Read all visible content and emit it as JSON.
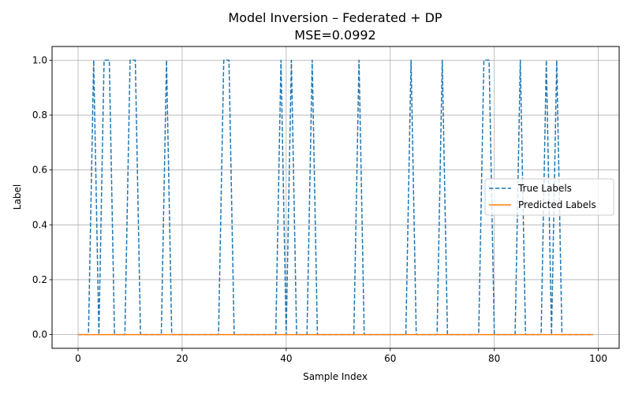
{
  "chart_data": {
    "type": "line",
    "title": "Model Inversion – Federated + DP",
    "subtitle": "MSE=0.0992",
    "xlabel": "Sample Index",
    "ylabel": "Label",
    "xlim": [
      -5,
      104
    ],
    "ylim": [
      -0.05,
      1.05
    ],
    "xticks": [
      0,
      20,
      40,
      60,
      80,
      100
    ],
    "yticks": [
      0.0,
      0.2,
      0.4,
      0.6,
      0.8,
      1.0
    ],
    "grid": true,
    "legend_position": "center-right",
    "series": [
      {
        "name": "True Labels",
        "style": "dashed",
        "color": "#1f77b4",
        "x": [
          0,
          1,
          2,
          3,
          4,
          5,
          6,
          7,
          8,
          9,
          10,
          11,
          12,
          13,
          14,
          15,
          16,
          17,
          18,
          19,
          20,
          21,
          22,
          23,
          24,
          25,
          26,
          27,
          28,
          29,
          30,
          31,
          32,
          33,
          34,
          35,
          36,
          37,
          38,
          39,
          40,
          41,
          42,
          43,
          44,
          45,
          46,
          47,
          48,
          49,
          50,
          51,
          52,
          53,
          54,
          55,
          56,
          57,
          58,
          59,
          60,
          61,
          62,
          63,
          64,
          65,
          66,
          67,
          68,
          69,
          70,
          71,
          72,
          73,
          74,
          75,
          76,
          77,
          78,
          79,
          80,
          81,
          82,
          83,
          84,
          85,
          86,
          87,
          88,
          89,
          90,
          91,
          92,
          93,
          94,
          95,
          96,
          97,
          98,
          99
        ],
        "values": [
          0,
          0,
          0,
          1,
          0,
          1,
          1,
          0,
          0,
          0,
          1,
          1,
          0,
          0,
          0,
          0,
          0,
          1,
          0,
          0,
          0,
          0,
          0,
          0,
          0,
          0,
          0,
          0,
          1,
          1,
          0,
          0,
          0,
          0,
          0,
          0,
          0,
          0,
          0,
          1,
          0,
          1,
          0,
          0,
          0,
          1,
          0,
          0,
          0,
          0,
          0,
          0,
          0,
          0,
          1,
          0,
          0,
          0,
          0,
          0,
          0,
          0,
          0,
          0,
          1,
          0,
          0,
          0,
          0,
          0,
          1,
          0,
          0,
          0,
          0,
          0,
          0,
          0,
          1,
          1,
          0,
          0,
          0,
          0,
          0,
          1,
          0,
          0,
          0,
          0,
          1,
          0,
          1,
          0,
          0,
          0,
          0,
          0,
          0,
          0
        ]
      },
      {
        "name": "Predicted Labels",
        "style": "solid",
        "color": "#ff7f0e",
        "x": [
          0,
          99
        ],
        "values": [
          0,
          0
        ]
      }
    ]
  }
}
